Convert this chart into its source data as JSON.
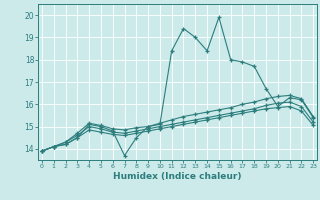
{
  "title": "",
  "xlabel": "Humidex (Indice chaleur)",
  "background_color": "#cceaea",
  "grid_color": "#ffffff",
  "line_color": "#2d7d7d",
  "x": [
    0,
    1,
    2,
    3,
    4,
    5,
    6,
    7,
    8,
    9,
    10,
    11,
    12,
    13,
    14,
    15,
    16,
    17,
    18,
    19,
    20,
    21,
    22,
    23
  ],
  "line1": [
    13.9,
    14.1,
    14.2,
    14.5,
    15.1,
    15.0,
    14.8,
    13.7,
    14.5,
    15.0,
    15.1,
    18.4,
    19.4,
    19.0,
    18.4,
    19.9,
    18.0,
    17.9,
    17.7,
    16.7,
    15.9,
    16.3,
    16.2,
    15.4
  ],
  "line2": [
    13.9,
    14.1,
    14.3,
    14.7,
    15.15,
    15.05,
    14.9,
    14.85,
    14.95,
    15.0,
    15.15,
    15.3,
    15.45,
    15.55,
    15.65,
    15.75,
    15.85,
    16.0,
    16.1,
    16.25,
    16.35,
    16.4,
    16.25,
    15.45
  ],
  "line3": [
    13.9,
    14.1,
    14.3,
    14.6,
    15.0,
    14.9,
    14.75,
    14.7,
    14.8,
    14.9,
    15.0,
    15.1,
    15.2,
    15.3,
    15.4,
    15.5,
    15.6,
    15.7,
    15.8,
    15.95,
    16.05,
    16.1,
    15.9,
    15.2
  ],
  "line4": [
    13.9,
    14.1,
    14.2,
    14.5,
    14.85,
    14.75,
    14.65,
    14.6,
    14.7,
    14.8,
    14.9,
    15.0,
    15.1,
    15.2,
    15.3,
    15.4,
    15.5,
    15.6,
    15.7,
    15.8,
    15.85,
    15.9,
    15.7,
    15.05
  ],
  "ylim": [
    13.5,
    20.5
  ],
  "yticks": [
    14,
    15,
    16,
    17,
    18,
    19,
    20
  ],
  "xticks": [
    0,
    1,
    2,
    3,
    4,
    5,
    6,
    7,
    8,
    9,
    10,
    11,
    12,
    13,
    14,
    15,
    16,
    17,
    18,
    19,
    20,
    21,
    22,
    23
  ]
}
